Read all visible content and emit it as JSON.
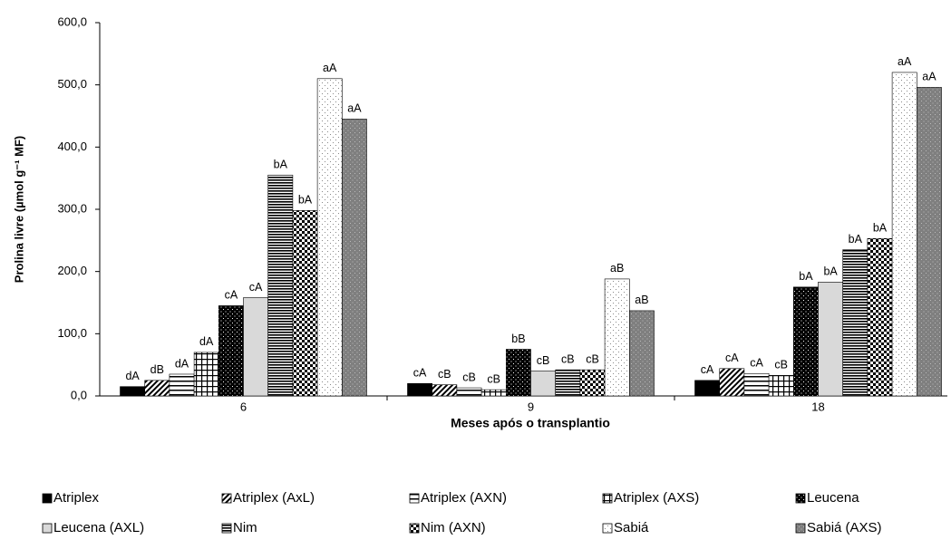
{
  "chart_data": {
    "type": "bar",
    "y_label": "Prolina livre (µmol g⁻¹ MF)",
    "x_label": "Meses após o transplantio",
    "categories": [
      "6",
      "9",
      "18"
    ],
    "ylim": [
      0,
      600
    ],
    "yticks": [
      {
        "value": 0,
        "label": "0,0"
      },
      {
        "value": 100,
        "label": "100,0"
      },
      {
        "value": 200,
        "label": "200,0"
      },
      {
        "value": 300,
        "label": "300,0"
      },
      {
        "value": 400,
        "label": "400,0"
      },
      {
        "value": 500,
        "label": "500,0"
      },
      {
        "value": 600,
        "label": "600,0"
      }
    ],
    "series": [
      {
        "name": "Atriplex",
        "values": [
          15,
          20,
          25
        ],
        "letters": [
          "dA",
          "cA",
          "cA"
        ]
      },
      {
        "name": "Atriplex (AxL)",
        "values": [
          25,
          18,
          44
        ],
        "letters": [
          "dB",
          "cB",
          "cA"
        ]
      },
      {
        "name": "Atriplex (AXN)",
        "values": [
          35,
          13,
          36
        ],
        "letters": [
          "dA",
          "cB",
          "cA"
        ]
      },
      {
        "name": "Atriplex (AXS)",
        "values": [
          70,
          10,
          33
        ],
        "letters": [
          "dA",
          "cB",
          "cB"
        ]
      },
      {
        "name": "Leucena",
        "values": [
          145,
          75,
          175
        ],
        "letters": [
          "cA",
          "bB",
          "bA"
        ]
      },
      {
        "name": "Leucena (AXL)",
        "values": [
          158,
          40,
          183
        ],
        "letters": [
          "cA",
          "cB",
          "bA"
        ]
      },
      {
        "name": "Nim",
        "values": [
          355,
          42,
          235
        ],
        "letters": [
          "bA",
          "cB",
          "bA"
        ]
      },
      {
        "name": "Nim (AXN)",
        "values": [
          298,
          42,
          253
        ],
        "letters": [
          "bA",
          "cB",
          "bA"
        ]
      },
      {
        "name": "Sabiá",
        "values": [
          510,
          188,
          520
        ],
        "letters": [
          "aA",
          "aB",
          "aA"
        ]
      },
      {
        "name": "Sabiá (AXS)",
        "values": [
          445,
          137,
          496
        ],
        "letters": [
          "aA",
          "aB",
          "aA"
        ]
      }
    ]
  }
}
